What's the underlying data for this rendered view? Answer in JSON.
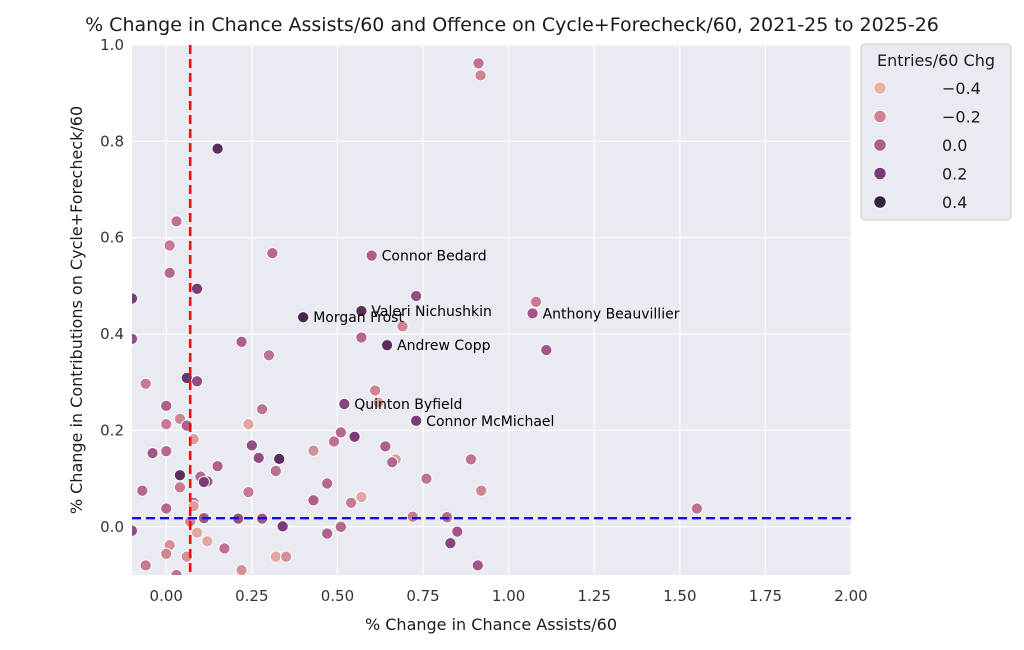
{
  "chart_data": {
    "type": "scatter",
    "title": "% Change in Chance Assists/60 and Offence on Cycle+Forecheck/60, 2021-25 to 2025-26",
    "xlabel": "% Change in Chance Assists/60",
    "ylabel": "% Change in Contributions on Cycle+Forecheck/60",
    "xlim": [
      -0.1,
      2.0
    ],
    "ylim": [
      -0.1,
      1.0
    ],
    "xticks": [
      "0.00",
      "0.25",
      "0.50",
      "0.75",
      "1.00",
      "1.25",
      "1.50",
      "1.75",
      "2.00"
    ],
    "yticks": [
      "0.0",
      "0.2",
      "0.4",
      "0.6",
      "0.8",
      "1.0"
    ],
    "vline_x": 0.07,
    "hline_y": 0.018,
    "colors": {
      "vline": "#e8130f",
      "hline": "#1010ee",
      "background": "#eaeaf2",
      "grid": "#ffffff"
    },
    "legend": {
      "title": "Entries/60 Chg",
      "entries": [
        {
          "label": "−0.4",
          "value": -0.4,
          "color": "#e7b4a6"
        },
        {
          "label": "−0.2",
          "value": -0.2,
          "color": "#cf8493"
        },
        {
          "label": "0.0",
          "value": 0.0,
          "color": "#ae5d8e"
        },
        {
          "label": "0.2",
          "value": 0.2,
          "color": "#7a3c78"
        },
        {
          "label": "0.4",
          "value": 0.4,
          "color": "#35213f"
        }
      ]
    },
    "annotations": [
      {
        "text": "Connor Bedard",
        "x": 0.6,
        "y": 0.563
      },
      {
        "text": "Valeri Nichushkin",
        "x": 0.57,
        "y": 0.448
      },
      {
        "text": "Morgan Frost",
        "x": 0.4,
        "y": 0.435
      },
      {
        "text": "Anthony Beauvillier",
        "x": 1.07,
        "y": 0.443
      },
      {
        "text": "Andrew Copp",
        "x": 0.645,
        "y": 0.377
      },
      {
        "text": "Quinton Byfield",
        "x": 0.52,
        "y": 0.255
      },
      {
        "text": "Connor McMichael",
        "x": 0.73,
        "y": 0.22
      }
    ],
    "points": [
      {
        "x": 0.912,
        "y": 0.962,
        "c": -0.1
      },
      {
        "x": 0.918,
        "y": 0.937,
        "c": -0.2
      },
      {
        "x": 0.15,
        "y": 0.785,
        "c": 0.3
      },
      {
        "x": 0.03,
        "y": 0.634,
        "c": -0.1
      },
      {
        "x": 0.01,
        "y": 0.584,
        "c": -0.15
      },
      {
        "x": 0.31,
        "y": 0.568,
        "c": -0.05
      },
      {
        "x": 0.6,
        "y": 0.563,
        "c": 0.0
      },
      {
        "x": 0.01,
        "y": 0.527,
        "c": -0.05
      },
      {
        "x": 0.09,
        "y": 0.494,
        "c": 0.2
      },
      {
        "x": 0.73,
        "y": 0.479,
        "c": 0.1
      },
      {
        "x": -0.1,
        "y": 0.474,
        "c": 0.2
      },
      {
        "x": 1.08,
        "y": 0.467,
        "c": -0.15
      },
      {
        "x": 0.57,
        "y": 0.448,
        "c": 0.3
      },
      {
        "x": 1.07,
        "y": 0.443,
        "c": 0.05
      },
      {
        "x": 0.4,
        "y": 0.435,
        "c": 0.35
      },
      {
        "x": 0.69,
        "y": 0.416,
        "c": -0.2
      },
      {
        "x": 0.57,
        "y": 0.393,
        "c": -0.05
      },
      {
        "x": -0.1,
        "y": 0.39,
        "c": 0.1
      },
      {
        "x": 0.22,
        "y": 0.384,
        "c": 0.0
      },
      {
        "x": 0.645,
        "y": 0.377,
        "c": 0.3
      },
      {
        "x": 1.11,
        "y": 0.367,
        "c": 0.05
      },
      {
        "x": 0.3,
        "y": 0.356,
        "c": -0.1
      },
      {
        "x": 0.06,
        "y": 0.309,
        "c": 0.25
      },
      {
        "x": 0.09,
        "y": 0.302,
        "c": 0.1
      },
      {
        "x": -0.06,
        "y": 0.297,
        "c": -0.15
      },
      {
        "x": 0.61,
        "y": 0.283,
        "c": -0.2
      },
      {
        "x": 0.62,
        "y": 0.258,
        "c": -0.3
      },
      {
        "x": 0.52,
        "y": 0.255,
        "c": 0.15
      },
      {
        "x": 0.0,
        "y": 0.251,
        "c": 0.0
      },
      {
        "x": 0.28,
        "y": 0.244,
        "c": -0.1
      },
      {
        "x": 0.04,
        "y": 0.224,
        "c": -0.2
      },
      {
        "x": 0.73,
        "y": 0.22,
        "c": 0.2
      },
      {
        "x": 0.24,
        "y": 0.213,
        "c": -0.35
      },
      {
        "x": 0.0,
        "y": 0.213,
        "c": -0.15
      },
      {
        "x": 0.06,
        "y": 0.21,
        "c": 0.0
      },
      {
        "x": 0.51,
        "y": 0.196,
        "c": -0.05
      },
      {
        "x": 0.55,
        "y": 0.187,
        "c": 0.2
      },
      {
        "x": 0.08,
        "y": 0.182,
        "c": -0.3
      },
      {
        "x": 0.49,
        "y": 0.177,
        "c": -0.1
      },
      {
        "x": 0.25,
        "y": 0.169,
        "c": 0.1
      },
      {
        "x": 0.64,
        "y": 0.167,
        "c": 0.0
      },
      {
        "x": 0.43,
        "y": 0.158,
        "c": -0.25
      },
      {
        "x": -0.04,
        "y": 0.153,
        "c": 0.05
      },
      {
        "x": 0.0,
        "y": 0.157,
        "c": -0.05
      },
      {
        "x": 0.27,
        "y": 0.143,
        "c": 0.1
      },
      {
        "x": 0.33,
        "y": 0.141,
        "c": 0.3
      },
      {
        "x": 0.67,
        "y": 0.14,
        "c": -0.3
      },
      {
        "x": 0.89,
        "y": 0.14,
        "c": -0.1
      },
      {
        "x": 0.66,
        "y": 0.134,
        "c": -0.05
      },
      {
        "x": 0.15,
        "y": 0.126,
        "c": 0.0
      },
      {
        "x": 0.32,
        "y": 0.116,
        "c": -0.1
      },
      {
        "x": 0.04,
        "y": 0.107,
        "c": 0.3
      },
      {
        "x": 0.1,
        "y": 0.104,
        "c": -0.05
      },
      {
        "x": 0.76,
        "y": 0.1,
        "c": -0.1
      },
      {
        "x": 0.12,
        "y": 0.094,
        "c": 0.1
      },
      {
        "x": 0.11,
        "y": 0.093,
        "c": 0.2
      },
      {
        "x": 0.47,
        "y": 0.09,
        "c": -0.05
      },
      {
        "x": 0.04,
        "y": 0.082,
        "c": -0.15
      },
      {
        "x": 0.92,
        "y": 0.075,
        "c": -0.2
      },
      {
        "x": -0.07,
        "y": 0.075,
        "c": -0.05
      },
      {
        "x": 0.24,
        "y": 0.072,
        "c": -0.15
      },
      {
        "x": 0.57,
        "y": 0.062,
        "c": -0.35
      },
      {
        "x": 0.43,
        "y": 0.055,
        "c": 0.0
      },
      {
        "x": 0.54,
        "y": 0.05,
        "c": -0.15
      },
      {
        "x": 0.08,
        "y": 0.05,
        "c": -0.1
      },
      {
        "x": 0.08,
        "y": 0.043,
        "c": -0.3
      },
      {
        "x": 0.0,
        "y": 0.038,
        "c": -0.05
      },
      {
        "x": 1.55,
        "y": 0.038,
        "c": -0.1
      },
      {
        "x": 0.72,
        "y": 0.021,
        "c": -0.15
      },
      {
        "x": 0.82,
        "y": 0.02,
        "c": -0.05
      },
      {
        "x": 0.11,
        "y": 0.018,
        "c": 0.05
      },
      {
        "x": 0.21,
        "y": 0.017,
        "c": 0.1
      },
      {
        "x": 0.28,
        "y": 0.017,
        "c": 0.05
      },
      {
        "x": 0.07,
        "y": 0.011,
        "c": -0.2
      },
      {
        "x": 0.34,
        "y": 0.001,
        "c": 0.2
      },
      {
        "x": 0.51,
        "y": 0.0,
        "c": -0.05
      },
      {
        "x": 0.09,
        "y": -0.012,
        "c": -0.35
      },
      {
        "x": 0.47,
        "y": -0.014,
        "c": 0.0
      },
      {
        "x": 0.85,
        "y": -0.01,
        "c": 0.05
      },
      {
        "x": -0.1,
        "y": -0.008,
        "c": 0.1
      },
      {
        "x": 0.12,
        "y": -0.03,
        "c": -0.35
      },
      {
        "x": 0.83,
        "y": -0.034,
        "c": 0.15
      },
      {
        "x": 0.01,
        "y": -0.038,
        "c": -0.25
      },
      {
        "x": 0.17,
        "y": -0.045,
        "c": -0.1
      },
      {
        "x": 0.0,
        "y": -0.056,
        "c": -0.2
      },
      {
        "x": 0.06,
        "y": -0.062,
        "c": -0.25
      },
      {
        "x": 0.32,
        "y": -0.062,
        "c": -0.35
      },
      {
        "x": 0.35,
        "y": -0.062,
        "c": -0.25
      },
      {
        "x": -0.06,
        "y": -0.08,
        "c": -0.15
      },
      {
        "x": 0.91,
        "y": -0.08,
        "c": 0.05
      },
      {
        "x": 0.22,
        "y": -0.09,
        "c": -0.25
      },
      {
        "x": 0.03,
        "y": -0.1,
        "c": -0.1
      }
    ]
  }
}
